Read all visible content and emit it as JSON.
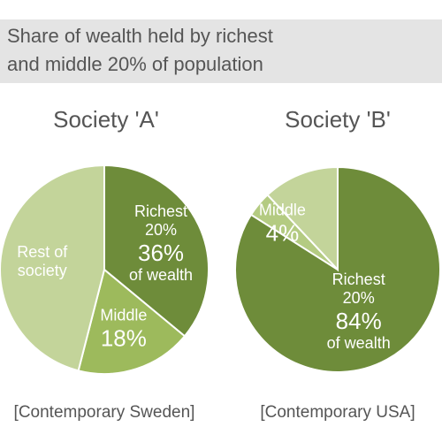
{
  "title_lines": [
    "Share of wealth held by richest",
    "and middle 20% of population"
  ],
  "chart_data": [
    {
      "type": "pie",
      "title": "Society 'A'",
      "caption": "[Contemporary Sweden]",
      "categories": [
        "Richest 20%",
        "Middle",
        "Rest of society"
      ],
      "values": [
        36,
        18,
        46
      ],
      "value_labels": [
        "36%",
        "18%",
        null
      ],
      "value_notes": [
        "of wealth",
        null,
        null
      ],
      "colors": [
        "#6e8c3a",
        "#9dba5c",
        "#c3d49a"
      ]
    },
    {
      "type": "pie",
      "title": "Society 'B'",
      "caption": "[Contemporary USA]",
      "categories": [
        "Richest 20%",
        "Middle",
        null
      ],
      "values": [
        84,
        4,
        12
      ],
      "value_labels": [
        "84%",
        "4%",
        null
      ],
      "value_notes": [
        "of wealth",
        null,
        null
      ],
      "colors": [
        "#6e8c3a",
        "#b4cb82",
        "#c3d49a"
      ]
    }
  ]
}
